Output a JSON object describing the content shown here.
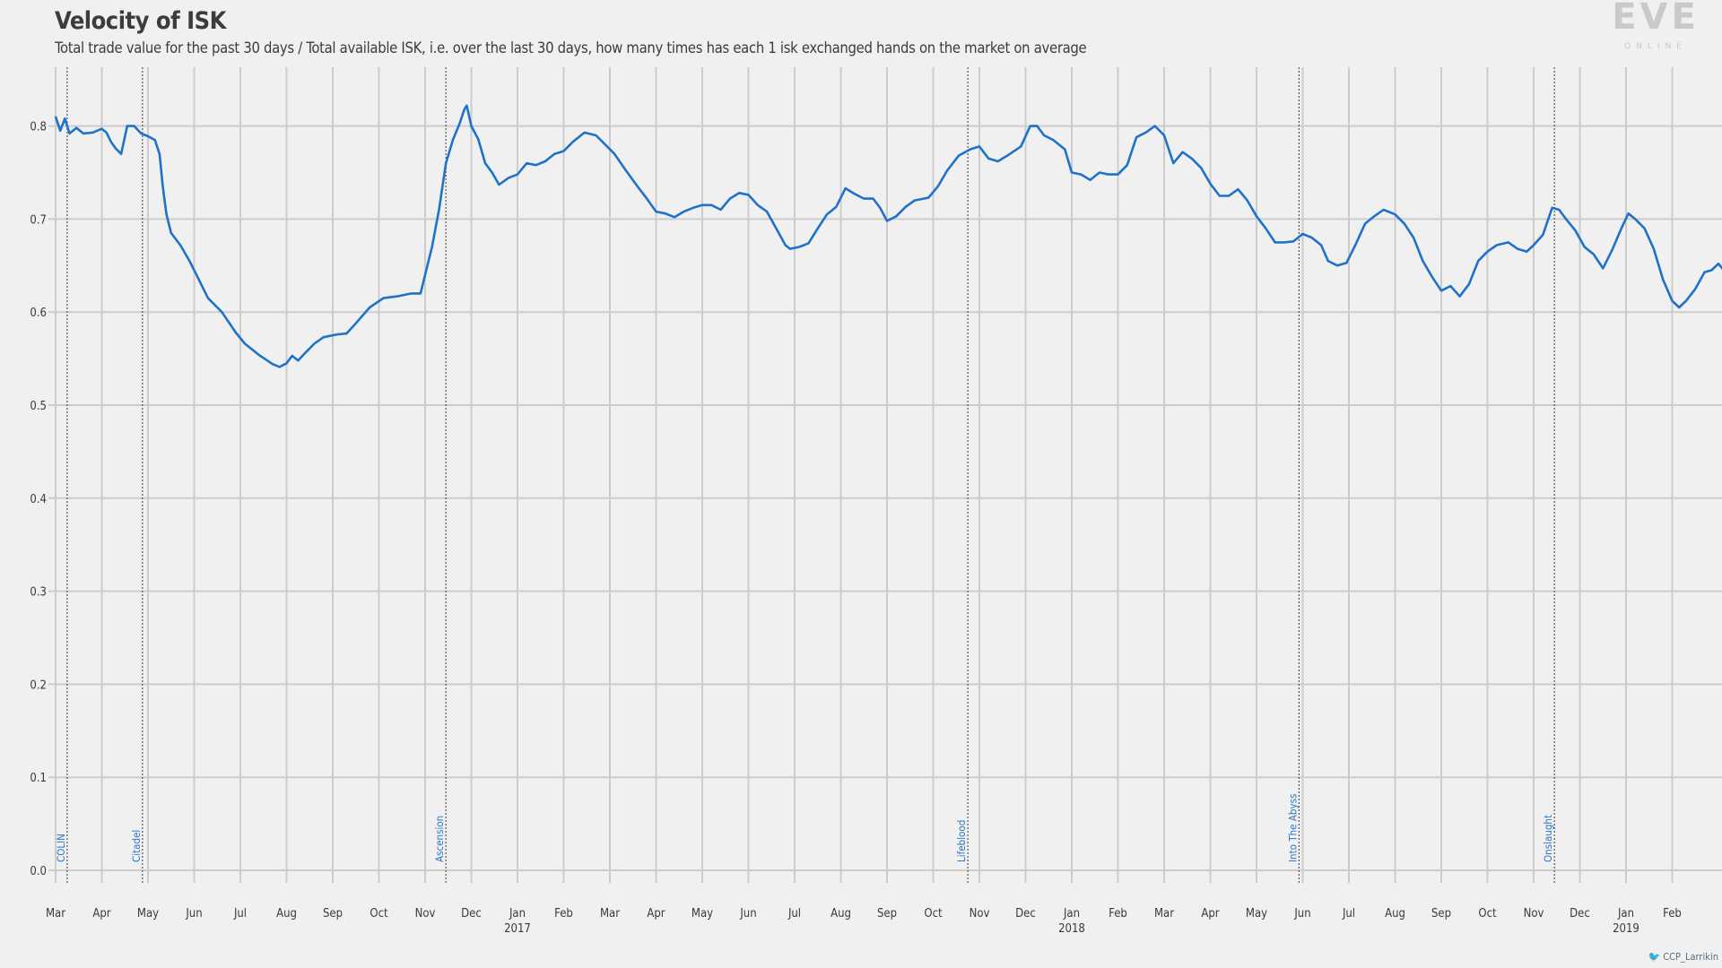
{
  "header": {
    "title": "Velocity of ISK",
    "subtitle": "Total trade value for the past 30 days / Total available ISK, i.e. over the last 30 days, how many times has each 1 isk exchanged hands on the market on average"
  },
  "logo": {
    "text": "EVE",
    "subtext": "ONLINE"
  },
  "credit": "CCP_Larrikin",
  "colors": {
    "line": "#1f72c7",
    "grid": "#cccccc",
    "background": "#f0f0f0",
    "event_line": "#555555",
    "event_label": "#2a78c8"
  },
  "chart_data": {
    "type": "line",
    "title": "Velocity of ISK",
    "xlabel": "",
    "ylabel": "",
    "ylim": [
      0,
      0.85
    ],
    "grid": true,
    "yticks": [
      "0.0",
      "0.1",
      "0.2",
      "0.3",
      "0.4",
      "0.5",
      "0.6",
      "0.7",
      "0.8"
    ],
    "month_ticks": [
      "Mar",
      "Apr",
      "May",
      "Jun",
      "Jul",
      "Aug",
      "Sep",
      "Oct",
      "Nov",
      "Dec",
      "Jan",
      "Feb",
      "Mar",
      "Apr",
      "May",
      "Jun",
      "Jul",
      "Aug",
      "Sep",
      "Oct",
      "Nov",
      "Dec",
      "Jan",
      "Feb",
      "Mar",
      "Apr",
      "May",
      "Jun",
      "Jul",
      "Aug",
      "Sep",
      "Oct",
      "Nov",
      "Dec",
      "Jan",
      "Feb"
    ],
    "year_ticks": [
      {
        "label": "2017",
        "month_index": 10
      },
      {
        "label": "2018",
        "month_index": 22
      },
      {
        "label": "2019",
        "month_index": 34
      }
    ],
    "events": [
      {
        "label": "COLIN",
        "month_pos": 0.25
      },
      {
        "label": "Citadel",
        "month_pos": 1.88
      },
      {
        "label": "Ascension",
        "month_pos": 8.45
      },
      {
        "label": "Lifeblood",
        "month_pos": 19.75
      },
      {
        "label": "Into The Abyss",
        "month_pos": 26.92
      },
      {
        "label": "Onslaught",
        "month_pos": 32.45
      }
    ],
    "series": [
      {
        "name": "",
        "points": [
          [
            0.0,
            0.81
          ],
          [
            0.1,
            0.795
          ],
          [
            0.2,
            0.808
          ],
          [
            0.3,
            0.792
          ],
          [
            0.45,
            0.798
          ],
          [
            0.6,
            0.792
          ],
          [
            0.8,
            0.793
          ],
          [
            1.0,
            0.797
          ],
          [
            1.1,
            0.793
          ],
          [
            1.2,
            0.783
          ],
          [
            1.3,
            0.776
          ],
          [
            1.42,
            0.77
          ],
          [
            1.55,
            0.8
          ],
          [
            1.7,
            0.8
          ],
          [
            1.85,
            0.792
          ],
          [
            2.0,
            0.789
          ],
          [
            2.15,
            0.785
          ],
          [
            2.25,
            0.77
          ],
          [
            2.32,
            0.735
          ],
          [
            2.4,
            0.705
          ],
          [
            2.5,
            0.685
          ],
          [
            2.7,
            0.672
          ],
          [
            2.9,
            0.655
          ],
          [
            3.1,
            0.635
          ],
          [
            3.3,
            0.615
          ],
          [
            3.6,
            0.6
          ],
          [
            3.9,
            0.578
          ],
          [
            4.1,
            0.566
          ],
          [
            4.4,
            0.554
          ],
          [
            4.7,
            0.544
          ],
          [
            4.85,
            0.541
          ],
          [
            5.0,
            0.545
          ],
          [
            5.12,
            0.553
          ],
          [
            5.25,
            0.548
          ],
          [
            5.4,
            0.556
          ],
          [
            5.6,
            0.566
          ],
          [
            5.8,
            0.573
          ],
          [
            6.1,
            0.576
          ],
          [
            6.3,
            0.577
          ],
          [
            6.5,
            0.588
          ],
          [
            6.8,
            0.605
          ],
          [
            7.1,
            0.615
          ],
          [
            7.4,
            0.617
          ],
          [
            7.7,
            0.62
          ],
          [
            7.9,
            0.62
          ],
          [
            8.0,
            0.64
          ],
          [
            8.15,
            0.67
          ],
          [
            8.3,
            0.71
          ],
          [
            8.45,
            0.76
          ],
          [
            8.6,
            0.785
          ],
          [
            8.75,
            0.803
          ],
          [
            8.85,
            0.818
          ],
          [
            8.9,
            0.822
          ],
          [
            9.0,
            0.8
          ],
          [
            9.15,
            0.786
          ],
          [
            9.3,
            0.76
          ],
          [
            9.45,
            0.75
          ],
          [
            9.6,
            0.737
          ],
          [
            9.8,
            0.744
          ],
          [
            10.0,
            0.748
          ],
          [
            10.2,
            0.76
          ],
          [
            10.4,
            0.758
          ],
          [
            10.6,
            0.762
          ],
          [
            10.8,
            0.77
          ],
          [
            11.0,
            0.773
          ],
          [
            11.2,
            0.783
          ],
          [
            11.45,
            0.793
          ],
          [
            11.7,
            0.79
          ],
          [
            11.9,
            0.78
          ],
          [
            12.1,
            0.77
          ],
          [
            12.35,
            0.752
          ],
          [
            12.6,
            0.735
          ],
          [
            12.8,
            0.722
          ],
          [
            13.0,
            0.708
          ],
          [
            13.2,
            0.706
          ],
          [
            13.4,
            0.702
          ],
          [
            13.6,
            0.708
          ],
          [
            13.8,
            0.712
          ],
          [
            14.0,
            0.715
          ],
          [
            14.2,
            0.715
          ],
          [
            14.4,
            0.71
          ],
          [
            14.6,
            0.722
          ],
          [
            14.8,
            0.728
          ],
          [
            15.0,
            0.726
          ],
          [
            15.2,
            0.715
          ],
          [
            15.4,
            0.708
          ],
          [
            15.6,
            0.69
          ],
          [
            15.8,
            0.672
          ],
          [
            15.9,
            0.668
          ],
          [
            16.1,
            0.67
          ],
          [
            16.3,
            0.674
          ],
          [
            16.5,
            0.69
          ],
          [
            16.7,
            0.705
          ],
          [
            16.9,
            0.713
          ],
          [
            17.1,
            0.733
          ],
          [
            17.3,
            0.727
          ],
          [
            17.5,
            0.722
          ],
          [
            17.7,
            0.722
          ],
          [
            17.85,
            0.712
          ],
          [
            18.0,
            0.698
          ],
          [
            18.2,
            0.703
          ],
          [
            18.4,
            0.713
          ],
          [
            18.6,
            0.72
          ],
          [
            18.9,
            0.723
          ],
          [
            19.1,
            0.735
          ],
          [
            19.3,
            0.752
          ],
          [
            19.55,
            0.768
          ],
          [
            19.8,
            0.775
          ],
          [
            20.0,
            0.778
          ],
          [
            20.2,
            0.765
          ],
          [
            20.4,
            0.762
          ],
          [
            20.6,
            0.768
          ],
          [
            20.9,
            0.778
          ],
          [
            21.1,
            0.8
          ],
          [
            21.25,
            0.8
          ],
          [
            21.4,
            0.79
          ],
          [
            21.6,
            0.785
          ],
          [
            21.85,
            0.775
          ],
          [
            22.0,
            0.75
          ],
          [
            22.2,
            0.748
          ],
          [
            22.4,
            0.742
          ],
          [
            22.6,
            0.75
          ],
          [
            22.8,
            0.748
          ],
          [
            23.0,
            0.748
          ],
          [
            23.2,
            0.758
          ],
          [
            23.4,
            0.788
          ],
          [
            23.6,
            0.793
          ],
          [
            23.8,
            0.8
          ],
          [
            24.0,
            0.79
          ],
          [
            24.2,
            0.76
          ],
          [
            24.4,
            0.772
          ],
          [
            24.6,
            0.765
          ],
          [
            24.8,
            0.755
          ],
          [
            25.0,
            0.738
          ],
          [
            25.2,
            0.725
          ],
          [
            25.4,
            0.725
          ],
          [
            25.6,
            0.732
          ],
          [
            25.8,
            0.72
          ],
          [
            26.0,
            0.703
          ],
          [
            26.2,
            0.69
          ],
          [
            26.4,
            0.675
          ],
          [
            26.6,
            0.675
          ],
          [
            26.8,
            0.676
          ],
          [
            27.0,
            0.684
          ],
          [
            27.2,
            0.68
          ],
          [
            27.4,
            0.672
          ],
          [
            27.55,
            0.655
          ],
          [
            27.75,
            0.65
          ],
          [
            27.95,
            0.653
          ],
          [
            28.15,
            0.673
          ],
          [
            28.35,
            0.695
          ],
          [
            28.55,
            0.703
          ],
          [
            28.75,
            0.71
          ],
          [
            29.0,
            0.705
          ],
          [
            29.2,
            0.695
          ],
          [
            29.4,
            0.68
          ],
          [
            29.6,
            0.655
          ],
          [
            29.8,
            0.638
          ],
          [
            30.0,
            0.623
          ],
          [
            30.2,
            0.628
          ],
          [
            30.4,
            0.617
          ],
          [
            30.6,
            0.63
          ],
          [
            30.8,
            0.655
          ],
          [
            31.0,
            0.665
          ],
          [
            31.2,
            0.672
          ],
          [
            31.45,
            0.675
          ],
          [
            31.65,
            0.668
          ],
          [
            31.85,
            0.665
          ],
          [
            32.0,
            0.672
          ],
          [
            32.2,
            0.683
          ],
          [
            32.4,
            0.712
          ],
          [
            32.55,
            0.71
          ],
          [
            32.7,
            0.7
          ],
          [
            32.9,
            0.688
          ],
          [
            33.1,
            0.67
          ],
          [
            33.3,
            0.662
          ],
          [
            33.5,
            0.647
          ],
          [
            33.7,
            0.667
          ],
          [
            33.9,
            0.69
          ],
          [
            34.05,
            0.706
          ],
          [
            34.2,
            0.7
          ],
          [
            34.4,
            0.69
          ],
          [
            34.6,
            0.668
          ],
          [
            34.8,
            0.635
          ],
          [
            35.0,
            0.612
          ],
          [
            35.15,
            0.605
          ],
          [
            35.3,
            0.612
          ],
          [
            35.5,
            0.625
          ],
          [
            35.7,
            0.643
          ],
          [
            35.85,
            0.645
          ],
          [
            36.0,
            0.652
          ],
          [
            36.2,
            0.64
          ],
          [
            36.4,
            0.648
          ],
          [
            36.6,
            0.64
          ],
          [
            36.8,
            0.648
          ],
          [
            37.0,
            0.645
          ],
          [
            37.15,
            0.648
          ]
        ]
      }
    ]
  }
}
